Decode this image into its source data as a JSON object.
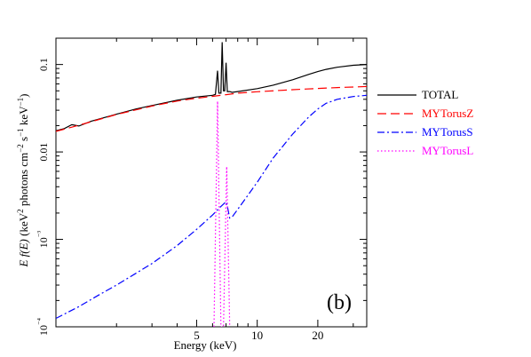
{
  "chart_data": {
    "type": "line",
    "xscale": "log",
    "yscale": "log",
    "xlim": [
      1,
      35
    ],
    "ylim": [
      0.0001,
      0.2
    ],
    "xlabel": "Energy (keV)",
    "ylabel": "E f(E) (keV² photons cm⁻² s⁻¹ keV⁻¹)",
    "panel_label": "(b)",
    "x_ticks": [
      {
        "value": 5,
        "label": "5"
      },
      {
        "value": 10,
        "label": "10"
      },
      {
        "value": 20,
        "label": "20"
      }
    ],
    "y_ticks": [
      {
        "value": 0.1,
        "label": "0.1"
      },
      {
        "value": 0.01,
        "label": "0.01"
      },
      {
        "value": 0.001,
        "label": "10⁻³"
      },
      {
        "value": 0.0001,
        "label": "10⁻⁴"
      }
    ],
    "legend_position": "right, outside plot",
    "series": [
      {
        "name": "TOTAL",
        "color": "#000000",
        "dash": "solid",
        "points": [
          [
            1.0,
            0.0175
          ],
          [
            1.1,
            0.0185
          ],
          [
            1.2,
            0.0205
          ],
          [
            1.3,
            0.0198
          ],
          [
            1.5,
            0.0225
          ],
          [
            2,
            0.027
          ],
          [
            2.5,
            0.031
          ],
          [
            3,
            0.034
          ],
          [
            4,
            0.039
          ],
          [
            5,
            0.0425
          ],
          [
            6,
            0.0445
          ],
          [
            6.2,
            0.0455
          ],
          [
            6.35,
            0.085
          ],
          [
            6.45,
            0.047
          ],
          [
            6.6,
            0.047
          ],
          [
            6.7,
            0.18
          ],
          [
            6.8,
            0.05
          ],
          [
            6.9,
            0.05
          ],
          [
            7.0,
            0.105
          ],
          [
            7.1,
            0.049
          ],
          [
            7.3,
            0.049
          ],
          [
            7.5,
            0.048
          ],
          [
            8,
            0.049
          ],
          [
            10,
            0.053
          ],
          [
            12,
            0.058
          ],
          [
            15,
            0.067
          ],
          [
            18,
            0.077
          ],
          [
            20,
            0.083
          ],
          [
            22,
            0.088
          ],
          [
            25,
            0.093
          ],
          [
            30,
            0.098
          ],
          [
            35,
            0.1
          ]
        ]
      },
      {
        "name": "MYTorusZ",
        "color": "#ff0000",
        "dash": "dashed",
        "points": [
          [
            1.0,
            0.0172
          ],
          [
            1.2,
            0.0192
          ],
          [
            1.5,
            0.0222
          ],
          [
            2,
            0.0268
          ],
          [
            3,
            0.0335
          ],
          [
            4,
            0.0382
          ],
          [
            5,
            0.0412
          ],
          [
            6,
            0.0432
          ],
          [
            7,
            0.0452
          ],
          [
            8,
            0.047
          ],
          [
            10,
            0.0488
          ],
          [
            15,
            0.0515
          ],
          [
            20,
            0.0532
          ],
          [
            25,
            0.0545
          ],
          [
            30,
            0.0553
          ],
          [
            35,
            0.056
          ]
        ]
      },
      {
        "name": "MYTorusS",
        "color": "#0000ff",
        "dash": "dashdot",
        "points": [
          [
            1.0,
            0.000125
          ],
          [
            1.3,
            0.00017
          ],
          [
            1.6,
            0.000225
          ],
          [
            2,
            0.0003
          ],
          [
            2.5,
            0.00041
          ],
          [
            3,
            0.00053
          ],
          [
            4,
            0.00085
          ],
          [
            5,
            0.0013
          ],
          [
            6,
            0.0019
          ],
          [
            6.5,
            0.0023
          ],
          [
            7.0,
            0.0027
          ],
          [
            7.1,
            0.0024
          ],
          [
            7.3,
            0.00175
          ],
          [
            7.5,
            0.0018
          ],
          [
            8,
            0.0022
          ],
          [
            10,
            0.0045
          ],
          [
            12,
            0.0085
          ],
          [
            15,
            0.016
          ],
          [
            18,
            0.025
          ],
          [
            20,
            0.031
          ],
          [
            22,
            0.036
          ],
          [
            25,
            0.04
          ],
          [
            30,
            0.043
          ],
          [
            35,
            0.0445
          ]
        ]
      },
      {
        "name": "MYTorusL",
        "color": "#ff00ff",
        "dash": "dotted",
        "points": [
          [
            6.1,
            0.0001
          ],
          [
            6.35,
            0.038
          ],
          [
            6.6,
            0.0001
          ],
          [
            6.8,
            0.0001
          ],
          [
            7.05,
            0.0068
          ],
          [
            7.3,
            0.0001
          ]
        ]
      }
    ]
  }
}
